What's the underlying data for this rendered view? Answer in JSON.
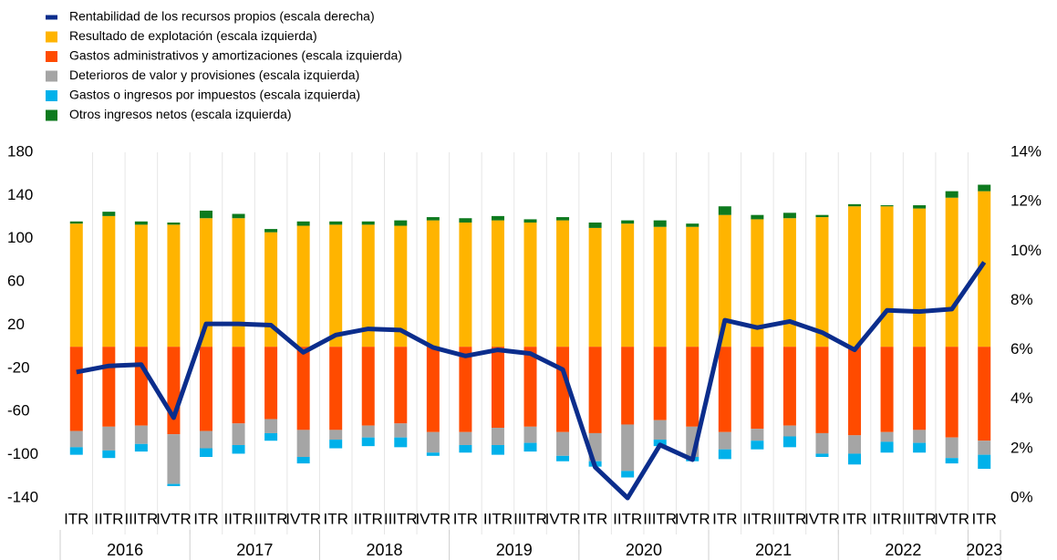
{
  "chart_data": {
    "type": "stacked_bar_line",
    "categories": [
      "ITR",
      "IITR",
      "IIITR",
      "IVTR",
      "ITR",
      "IITR",
      "IIITR",
      "IVTR",
      "ITR",
      "IITR",
      "IIITR",
      "IVTR",
      "ITR",
      "IITR",
      "IIITR",
      "IVTR",
      "ITR",
      "IITR",
      "IIITR",
      "IVTR",
      "ITR",
      "IITR",
      "IIITR",
      "IVTR",
      "ITR",
      "IITR",
      "IIITR",
      "IVTR",
      "ITR"
    ],
    "years": [
      "2016",
      "2017",
      "2018",
      "2019",
      "2020",
      "2021",
      "2022",
      "2023"
    ],
    "series": [
      {
        "name": "Rentabilidad de los recursos propios (escala derecha)",
        "type": "line",
        "axis": "y2",
        "color": "#0b2d8c",
        "values": [
          5.1,
          5.35,
          5.4,
          3.25,
          7.05,
          7.05,
          7.0,
          5.9,
          6.6,
          6.85,
          6.8,
          6.1,
          5.75,
          6.0,
          5.85,
          5.2,
          1.25,
          0.0,
          2.15,
          1.55,
          7.2,
          6.9,
          7.15,
          6.7,
          6.0,
          7.6,
          7.55,
          7.65,
          9.55
        ]
      },
      {
        "name": "Resultado de explotación (escala izquierda)",
        "type": "bar",
        "color": "#ffb400",
        "values": [
          114,
          121,
          113,
          113,
          119,
          119,
          106,
          112,
          113,
          113,
          112,
          117,
          115,
          117,
          115,
          117,
          110,
          114,
          111,
          111,
          122,
          118,
          119,
          120,
          130,
          130,
          128,
          138,
          144
        ]
      },
      {
        "name": "Gastos administrativos y amortizaciones (escala izquierda)",
        "type": "bar",
        "color": "#ff4b00",
        "values": [
          -78,
          -74,
          -73,
          -81,
          -78,
          -71,
          -67,
          -77,
          -77,
          -73,
          -71,
          -79,
          -79,
          -75,
          -74,
          -79,
          -80,
          -72,
          -68,
          -74,
          -79,
          -76,
          -73,
          -80,
          -82,
          -79,
          -77,
          -84,
          -87
        ]
      },
      {
        "name": "Deterioros de valor y provisiones (escala izquierda)",
        "type": "bar",
        "color": "#a5a5a5",
        "values": [
          -15,
          -22,
          -17,
          -46,
          -16,
          -20,
          -13,
          -25,
          -9,
          -11,
          -13,
          -19,
          -12,
          -16,
          -15,
          -22,
          -26,
          -43,
          -18,
          -28,
          -16,
          -11,
          -10,
          -19,
          -17,
          -9,
          -12,
          -19,
          -13
        ]
      },
      {
        "name": "Gastos o ingresos por impuestos (escala izquierda)",
        "type": "bar",
        "color": "#00b1ea",
        "values": [
          -7,
          -7,
          -7,
          -2,
          -8,
          -8,
          -7,
          -6,
          -8,
          -8,
          -9,
          -3,
          -7,
          -9,
          -8,
          -5,
          -5,
          -6,
          -6,
          -4,
          -9,
          -8,
          -10,
          -3,
          -10,
          -10,
          -9,
          -5,
          -13
        ]
      },
      {
        "name": "Otros ingresos netos (escala izquierda)",
        "type": "bar",
        "color": "#0d7a1e",
        "values": [
          2,
          4,
          3,
          2,
          7,
          4,
          3,
          4,
          3,
          3,
          5,
          3,
          4,
          4,
          3,
          3,
          5,
          3,
          6,
          3,
          8,
          4,
          5,
          2,
          2,
          1,
          3,
          6,
          6
        ]
      }
    ],
    "ylim": [
      -140,
      180
    ],
    "yticks": [
      -140,
      -100,
      -60,
      -20,
      20,
      60,
      100,
      140,
      180
    ],
    "y2lim": [
      0,
      14
    ],
    "y2ticks": [
      {
        "value": 0,
        "label": "0%"
      },
      {
        "value": 2,
        "label": "2%"
      },
      {
        "value": 4,
        "label": "4%"
      },
      {
        "value": 6,
        "label": "6%"
      },
      {
        "value": 8,
        "label": "8%"
      },
      {
        "value": 10,
        "label": "10%"
      },
      {
        "value": 12,
        "label": "12%"
      },
      {
        "value": 14,
        "label": "14%"
      }
    ],
    "grid": false,
    "legend": "top-left"
  }
}
